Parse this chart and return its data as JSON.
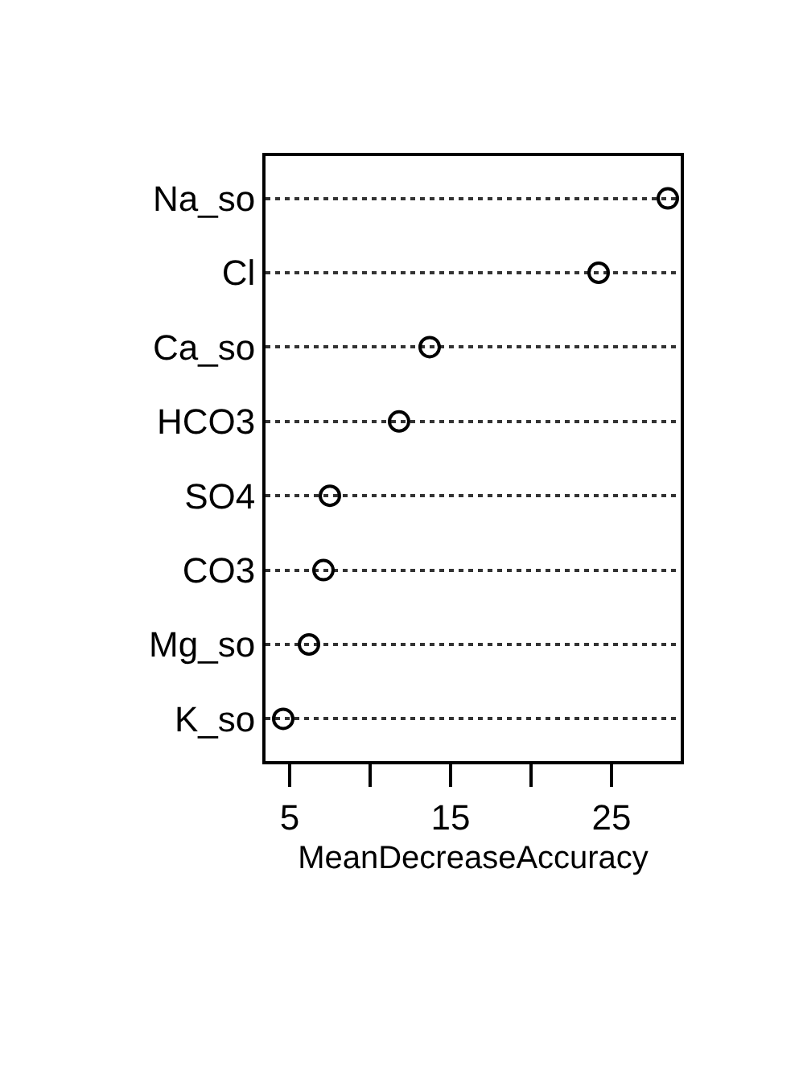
{
  "chart_data": {
    "type": "scatter",
    "xlabel": "MeanDecreaseAccuracy",
    "categories": [
      "Na_so",
      "Cl",
      "Ca_so",
      "HCO3",
      "SO4",
      "CO3",
      "Mg_so",
      "K_so"
    ],
    "orientation": "horizontal",
    "series": [
      {
        "color": "#000000",
        "values": [
          28.5,
          24.2,
          13.7,
          11.8,
          7.5,
          7.1,
          6.2,
          4.6
        ]
      }
    ],
    "xlim": [
      3.5,
      29.3
    ],
    "xticks": [
      5,
      {
        "value": 10,
        "label": null
      },
      15,
      {
        "value": 20,
        "label": null
      },
      25
    ],
    "grid": "y",
    "marker": "circle",
    "legend": false
  }
}
